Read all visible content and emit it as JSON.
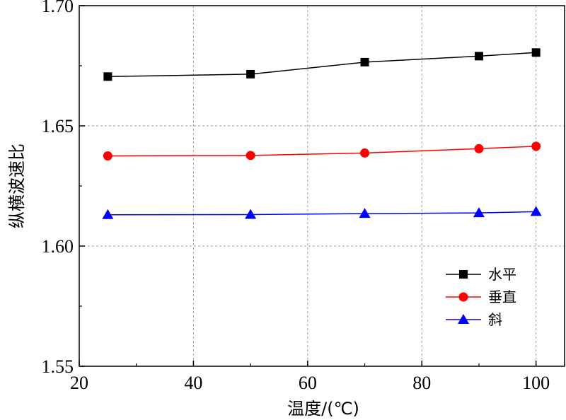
{
  "chart_data": {
    "type": "line",
    "title": "",
    "xlabel": "温度/(℃)",
    "ylabel": "纵横波速比",
    "xlim": [
      20,
      105
    ],
    "ylim": [
      1.55,
      1.7
    ],
    "xticks": [
      20,
      40,
      60,
      80,
      100
    ],
    "yticks": [
      1.55,
      1.6,
      1.65,
      1.7
    ],
    "xtick_labels": [
      "20",
      "40",
      "60",
      "80",
      "100"
    ],
    "ytick_labels": [
      "1.55",
      "1.60",
      "1.65",
      "1.70"
    ],
    "grid": true,
    "legend_position": "bottom-right",
    "x": [
      25,
      50,
      70,
      90,
      100
    ],
    "series": [
      {
        "name": "水平",
        "values": [
          1.6705,
          1.6715,
          1.6765,
          1.679,
          1.6805
        ],
        "color": "#000000",
        "marker": "square"
      },
      {
        "name": "垂直",
        "values": [
          1.6375,
          1.6377,
          1.6387,
          1.6405,
          1.6415
        ],
        "color": "#ff0000",
        "marker": "circle"
      },
      {
        "name": "斜",
        "values": [
          1.613,
          1.6131,
          1.6135,
          1.6138,
          1.6143
        ],
        "color": "#0000ff",
        "marker": "triangle"
      }
    ]
  }
}
